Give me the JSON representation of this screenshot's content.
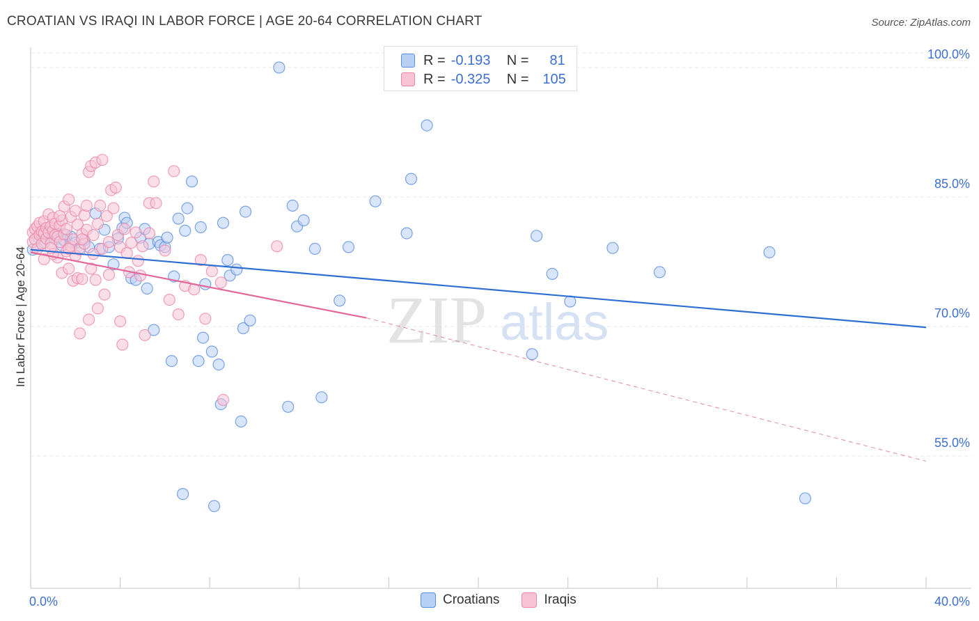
{
  "title": "CROATIAN VS IRAQI IN LABOR FORCE | AGE 20-64 CORRELATION CHART",
  "source": "Source: ZipAtlas.com",
  "watermark": {
    "zip": "ZIP",
    "atlas": "atlas"
  },
  "legend": {
    "rows": [
      {
        "r_label": "R =",
        "r_value": "-0.193",
        "n_label": "N =",
        "n_value": "81"
      },
      {
        "r_label": "R =",
        "r_value": "-0.325",
        "n_label": "N =",
        "n_value": "105"
      }
    ],
    "bottom": [
      "Croatians",
      "Iraqis"
    ]
  },
  "colors": {
    "blue_fill": "#b9d0f5",
    "blue_stroke": "#5b8ee0",
    "blue_line": "#2e6fd1",
    "pink_fill": "#f8c4d5",
    "pink_stroke": "#ec87a8",
    "pink_line": "#e0689a",
    "axis_text": "#3d6fd1",
    "grid": "#e6e6e6"
  },
  "chart_data": {
    "type": "scatter",
    "title": "CROATIAN VS IRAQI IN LABOR FORCE | AGE 20-64 CORRELATION CHART",
    "xlabel": "",
    "ylabel": "In Labor Force | Age 20-64",
    "xlim": [
      0,
      40
    ],
    "ylim": [
      40,
      101
    ],
    "x_tick_labels": [
      "0.0%",
      "40.0%"
    ],
    "y_ticks": [
      55,
      70,
      85,
      100
    ],
    "y_tick_labels": [
      "55.0%",
      "70.0%",
      "85.0%",
      "100.0%"
    ],
    "series": [
      {
        "name": "Croatians",
        "r": -0.193,
        "n": 81,
        "trend": {
          "x": [
            0,
            40
          ],
          "y": [
            78.9,
            69.9
          ],
          "dashed_to": null
        },
        "points": [
          [
            0.1,
            78.9
          ],
          [
            0.3,
            80.4
          ],
          [
            0.4,
            80.9
          ],
          [
            0.5,
            80.5
          ],
          [
            0.6,
            79.7
          ],
          [
            0.8,
            81.1
          ],
          [
            1.0,
            80.8
          ],
          [
            1.1,
            80.1
          ],
          [
            1.2,
            80.7
          ],
          [
            1.4,
            79.4
          ],
          [
            1.6,
            80.6
          ],
          [
            1.8,
            80.4
          ],
          [
            2.0,
            79.7
          ],
          [
            2.2,
            79.1
          ],
          [
            2.4,
            80.0
          ],
          [
            2.6,
            79.2
          ],
          [
            2.9,
            83.1
          ],
          [
            3.1,
            79.0
          ],
          [
            3.3,
            81.2
          ],
          [
            3.5,
            79.2
          ],
          [
            3.7,
            77.2
          ],
          [
            3.9,
            80.2
          ],
          [
            4.1,
            81.4
          ],
          [
            4.2,
            82.6
          ],
          [
            4.3,
            82.0
          ],
          [
            4.5,
            75.6
          ],
          [
            4.7,
            75.4
          ],
          [
            4.9,
            80.3
          ],
          [
            5.1,
            81.3
          ],
          [
            5.2,
            74.4
          ],
          [
            5.3,
            79.6
          ],
          [
            5.5,
            69.6
          ],
          [
            5.7,
            79.8
          ],
          [
            5.8,
            79.4
          ],
          [
            6.0,
            79.2
          ],
          [
            6.1,
            80.3
          ],
          [
            6.3,
            66.0
          ],
          [
            6.4,
            75.8
          ],
          [
            6.6,
            82.5
          ],
          [
            6.8,
            50.6
          ],
          [
            6.9,
            81.1
          ],
          [
            7.0,
            83.7
          ],
          [
            7.2,
            86.8
          ],
          [
            7.5,
            66.0
          ],
          [
            7.6,
            81.5
          ],
          [
            7.7,
            68.7
          ],
          [
            7.8,
            74.9
          ],
          [
            8.1,
            67.1
          ],
          [
            8.2,
            49.2
          ],
          [
            8.4,
            65.6
          ],
          [
            8.5,
            61.0
          ],
          [
            8.6,
            82.0
          ],
          [
            8.8,
            77.7
          ],
          [
            8.9,
            75.9
          ],
          [
            9.2,
            76.6
          ],
          [
            9.4,
            59.0
          ],
          [
            9.5,
            69.8
          ],
          [
            9.6,
            83.3
          ],
          [
            9.8,
            70.7
          ],
          [
            11.1,
            100.0
          ],
          [
            11.5,
            60.7
          ],
          [
            11.7,
            84.0
          ],
          [
            11.9,
            81.6
          ],
          [
            12.2,
            82.3
          ],
          [
            12.7,
            79.0
          ],
          [
            13.0,
            61.8
          ],
          [
            13.8,
            73.0
          ],
          [
            14.2,
            79.2
          ],
          [
            15.4,
            84.5
          ],
          [
            16.8,
            80.8
          ],
          [
            17.0,
            87.1
          ],
          [
            17.7,
            93.3
          ],
          [
            22.4,
            66.8
          ],
          [
            22.6,
            80.5
          ],
          [
            23.3,
            76.1
          ],
          [
            24.1,
            72.9
          ],
          [
            26.0,
            79.1
          ],
          [
            28.1,
            76.3
          ],
          [
            33.0,
            78.6
          ],
          [
            34.6,
            50.1
          ],
          [
            1.5,
            80.0
          ]
        ]
      },
      {
        "name": "Iraqis",
        "r": -0.325,
        "n": 105,
        "trend": {
          "x": [
            0,
            15
          ],
          "y": [
            78.6,
            71.0
          ],
          "dashed_to": [
            40,
            54.4
          ]
        },
        "points": [
          [
            0.1,
            79.8
          ],
          [
            0.1,
            80.9
          ],
          [
            0.2,
            81.3
          ],
          [
            0.2,
            80.1
          ],
          [
            0.3,
            79.0
          ],
          [
            0.3,
            81.6
          ],
          [
            0.4,
            80.6
          ],
          [
            0.4,
            82.0
          ],
          [
            0.5,
            81.0
          ],
          [
            0.5,
            79.6
          ],
          [
            0.6,
            80.8
          ],
          [
            0.6,
            82.2
          ],
          [
            0.7,
            81.4
          ],
          [
            0.7,
            80.2
          ],
          [
            0.8,
            83.0
          ],
          [
            0.8,
            80.9
          ],
          [
            0.9,
            81.6
          ],
          [
            0.9,
            79.6
          ],
          [
            1.0,
            81.1
          ],
          [
            1.0,
            82.6
          ],
          [
            1.1,
            80.6
          ],
          [
            1.1,
            81.9
          ],
          [
            1.2,
            78.0
          ],
          [
            1.2,
            80.4
          ],
          [
            1.3,
            81.7
          ],
          [
            1.3,
            79.8
          ],
          [
            1.4,
            82.3
          ],
          [
            1.4,
            76.2
          ],
          [
            1.5,
            80.7
          ],
          [
            1.5,
            83.9
          ],
          [
            1.6,
            78.7
          ],
          [
            1.6,
            81.3
          ],
          [
            1.7,
            76.7
          ],
          [
            1.7,
            84.7
          ],
          [
            1.8,
            82.7
          ],
          [
            1.8,
            79.3
          ],
          [
            1.9,
            75.3
          ],
          [
            1.9,
            80.1
          ],
          [
            2.0,
            83.4
          ],
          [
            2.0,
            78.2
          ],
          [
            2.1,
            75.6
          ],
          [
            2.1,
            81.8
          ],
          [
            2.2,
            69.2
          ],
          [
            2.2,
            78.9
          ],
          [
            2.3,
            80.7
          ],
          [
            2.3,
            75.5
          ],
          [
            2.4,
            82.9
          ],
          [
            2.4,
            79.6
          ],
          [
            2.5,
            84.0
          ],
          [
            2.5,
            81.2
          ],
          [
            2.6,
            70.8
          ],
          [
            2.6,
            87.9
          ],
          [
            2.7,
            88.6
          ],
          [
            2.7,
            76.7
          ],
          [
            2.8,
            78.4
          ],
          [
            2.8,
            80.6
          ],
          [
            2.9,
            75.4
          ],
          [
            2.9,
            89.0
          ],
          [
            3.0,
            72.1
          ],
          [
            3.0,
            81.9
          ],
          [
            3.1,
            84.0
          ],
          [
            3.2,
            89.3
          ],
          [
            3.2,
            79.0
          ],
          [
            3.3,
            73.7
          ],
          [
            3.4,
            82.8
          ],
          [
            3.5,
            76.0
          ],
          [
            3.5,
            79.8
          ],
          [
            3.6,
            85.8
          ],
          [
            3.7,
            83.7
          ],
          [
            3.8,
            86.1
          ],
          [
            3.9,
            80.6
          ],
          [
            4.0,
            70.6
          ],
          [
            4.0,
            79.2
          ],
          [
            4.1,
            67.9
          ],
          [
            4.2,
            81.3
          ],
          [
            4.3,
            78.5
          ],
          [
            4.4,
            76.3
          ],
          [
            4.5,
            79.7
          ],
          [
            4.7,
            80.9
          ],
          [
            4.8,
            77.6
          ],
          [
            4.9,
            75.9
          ],
          [
            5.0,
            79.3
          ],
          [
            5.1,
            69.0
          ],
          [
            5.3,
            80.8
          ],
          [
            5.3,
            84.3
          ],
          [
            5.5,
            86.8
          ],
          [
            5.6,
            84.3
          ],
          [
            6.0,
            78.8
          ],
          [
            6.2,
            73.1
          ],
          [
            6.4,
            88.0
          ],
          [
            6.6,
            71.4
          ],
          [
            6.9,
            74.7
          ],
          [
            7.3,
            74.3
          ],
          [
            7.6,
            77.7
          ],
          [
            7.8,
            70.9
          ],
          [
            8.1,
            76.4
          ],
          [
            8.5,
            75.1
          ],
          [
            8.6,
            61.5
          ],
          [
            11.0,
            79.3
          ],
          [
            1.0,
            78.4
          ],
          [
            0.6,
            77.8
          ],
          [
            1.3,
            82.8
          ],
          [
            2.3,
            80.1
          ],
          [
            0.9,
            79.1
          ],
          [
            1.7,
            79.0
          ]
        ]
      }
    ]
  }
}
